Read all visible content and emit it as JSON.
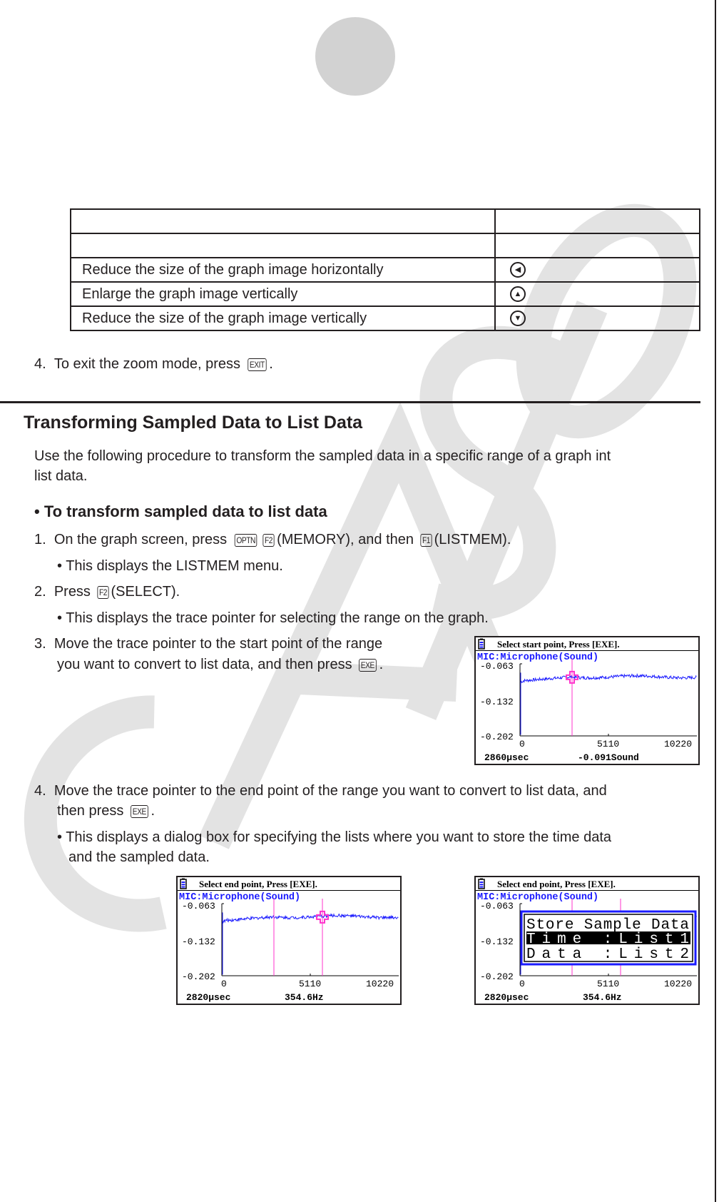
{
  "watermark": "CASIO",
  "zoom_table": {
    "rows": [
      {
        "operation": "",
        "key": ""
      },
      {
        "operation": "",
        "key": ""
      },
      {
        "operation": "Reduce the size of the graph image horizontally",
        "key": "left-arrow-key-icon",
        "glyph": "◀"
      },
      {
        "operation": "Enlarge the graph image vertically",
        "key": "up-arrow-key-icon",
        "glyph": "▲"
      },
      {
        "operation": "Reduce the size of the graph image vertically",
        "key": "down-arrow-key-icon",
        "glyph": "▼"
      }
    ]
  },
  "exit_step": {
    "number": "4.",
    "text": "To exit the zoom mode, press",
    "key": "EXIT",
    "end": "."
  },
  "section": {
    "title": "Transforming Sampled Data to List Data",
    "intro_line1": "Use the following procedure to transform the sampled data in a specific range of a graph int",
    "intro_line2": "list data.",
    "subtitle": "• To transform sampled data to list data",
    "step1": {
      "number": "1.",
      "text_a": "On the graph screen, press",
      "key1": "OPTN",
      "key2": "F2",
      "text_b": "(MEMORY), and then",
      "key3": "F1",
      "text_c": "(LISTMEM)."
    },
    "step1_note": "• This displays the LISTMEM menu.",
    "step2": {
      "number": "2.",
      "text_a": "Press",
      "key1": "F2",
      "text_b": "(SELECT)."
    },
    "step2_note": "• This displays the trace pointer for selecting the range on the graph.",
    "step3": {
      "number": "3.",
      "line1": "Move the trace pointer to the start point of the range",
      "line2": "you want to convert to list data, and then press",
      "key": "EXE",
      "end": "."
    },
    "step4": {
      "number": "4.",
      "line1": "Move the trace pointer to the end point of the range you want to convert to list data, and",
      "line2_a": "then press",
      "key": "EXE",
      "end": "."
    },
    "step4_note_line1": "• This displays a dialog box for specifying the lists where you want to store the time data",
    "step4_note_line2": "and the sampled data."
  },
  "screens": [
    {
      "prompt": "Select start point, Press [EXE].",
      "graph_title": "MIC:Microphone(Sound)",
      "y_ticks": [
        "-0.063",
        "-0.132",
        "-0.202"
      ],
      "x_ticks": [
        "0",
        "5110",
        "10220"
      ],
      "status_left": "2860µsec",
      "status_right": "-0.091Sound"
    },
    {
      "prompt": "Select end point, Press [EXE].",
      "graph_title": "MIC:Microphone(Sound)",
      "y_ticks": [
        "-0.063",
        "-0.132",
        "-0.202"
      ],
      "x_ticks": [
        "0",
        "5110",
        "10220"
      ],
      "status_left": "2820µsec",
      "status_right": "354.6Hz"
    },
    {
      "prompt": "Select end point, Press [EXE].",
      "graph_title": "MIC:Microphone(Sound)",
      "y_ticks": [
        "-0.063",
        "-0.132",
        "-0.202"
      ],
      "x_ticks": [
        "0",
        "5110",
        "10220"
      ],
      "status_left": "2820µsec",
      "status_right": "354.6Hz",
      "dialog": {
        "title": "Store Sample Data",
        "row1": " Time :List1",
        "row2": " Data :List2"
      }
    }
  ],
  "colors": {
    "trace": "#1a1aff",
    "cursor": "#ff33cc",
    "watermark": "#e3e3e3",
    "marker": "#d2d2d2"
  }
}
